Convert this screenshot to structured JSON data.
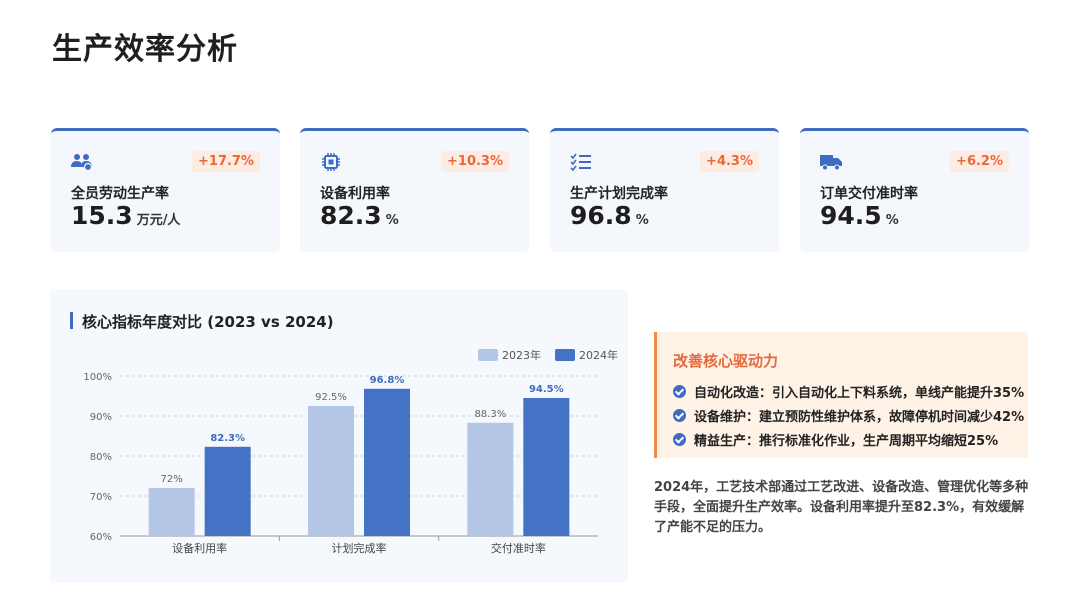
{
  "page": {
    "title": "生产效率分析"
  },
  "kpis": [
    {
      "icon": "team-icon",
      "change": "+17.7%",
      "label": "全员劳动生产率",
      "value": "15.3",
      "unit": "万元/人"
    },
    {
      "icon": "chip-icon",
      "change": "+10.3%",
      "label": "设备利用率",
      "value": "82.3",
      "unit": "%"
    },
    {
      "icon": "checklist-icon",
      "change": "+4.3%",
      "label": "生产计划完成率",
      "value": "96.8",
      "unit": "%"
    },
    {
      "icon": "truck-icon",
      "change": "+6.2%",
      "label": "订单交付准时率",
      "value": "94.5",
      "unit": "%"
    }
  ],
  "chart_panel": {
    "title": "核心指标年度对比 (2023 vs 2024)"
  },
  "chart_data": {
    "type": "bar",
    "title": "核心指标年度对比 (2023 vs 2024)",
    "categories": [
      "设备利用率",
      "计划完成率",
      "交付准时率"
    ],
    "series": [
      {
        "name": "2023年",
        "values": [
          72,
          92.5,
          88.3
        ],
        "labels": [
          "72%",
          "92.5%",
          "88.3%"
        ],
        "color": "#b4c7e7"
      },
      {
        "name": "2024年",
        "values": [
          82.3,
          96.8,
          94.5
        ],
        "labels": [
          "82.3%",
          "96.8%",
          "94.5%"
        ],
        "color": "#4472c4"
      }
    ],
    "ylim": [
      60,
      100
    ],
    "yticks": [
      "60%",
      "70%",
      "80%",
      "90%",
      "100%"
    ],
    "grid": true,
    "legend": "top-right"
  },
  "drivers": {
    "title": "改善核心驱动力",
    "items": [
      "自动化改造：引入自动化上下料系统，单线产能提升35%",
      "设备维护：建立预防性维护体系，故障停机时间减少42%",
      "精益生产：推行标准化作业，生产周期平均缩短25%"
    ]
  },
  "summary": "2024年，工艺技术部通过工艺改进、设备改造、管理优化等多种手段，全面提升生产效率。设备利用率提升至82.3%，有效缓解了产能不足的压力。",
  "colors": {
    "accent": "#3f6cc0",
    "orange": "#e7693b",
    "series2023": "#b4c7e7",
    "series2024": "#4472c4"
  }
}
